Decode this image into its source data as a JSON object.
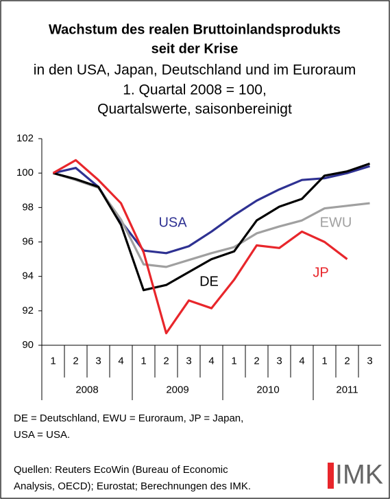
{
  "chart_data": {
    "type": "line",
    "title": [
      "Wachstum des realen Bruttoinlandsprodukts",
      "seit der Krise"
    ],
    "subtitle": [
      "in den USA, Japan, Deutschland und im Euroraum",
      "1. Quartal 2008 = 100,",
      "Quartalswerte, saisonbereinigt"
    ],
    "categories": [
      "1",
      "2",
      "3",
      "4",
      "1",
      "2",
      "3",
      "4",
      "1",
      "2",
      "3",
      "4",
      "1",
      "2",
      "3"
    ],
    "years": [
      "2008",
      "2009",
      "2010",
      "2011"
    ],
    "ylim": [
      90,
      102
    ],
    "yticks": [
      90,
      92,
      94,
      96,
      98,
      100,
      102
    ],
    "grid": false,
    "series": [
      {
        "name": "USA",
        "color": "#2e3192",
        "values": [
          100,
          100.3,
          99.2,
          97.2,
          95.5,
          95.35,
          95.75,
          96.6,
          97.55,
          98.4,
          99.05,
          99.6,
          99.7,
          100.0,
          100.4
        ]
      },
      {
        "name": "EWU",
        "color": "#a0a0a0",
        "values": [
          100,
          99.6,
          99.15,
          97.3,
          94.7,
          94.55,
          94.95,
          95.35,
          95.7,
          96.5,
          96.9,
          97.25,
          97.95,
          98.1,
          98.25
        ]
      },
      {
        "name": "DE",
        "color": "#000000",
        "values": [
          100,
          99.65,
          99.2,
          97.0,
          93.2,
          93.5,
          94.25,
          95.0,
          95.45,
          97.25,
          98.05,
          98.5,
          99.85,
          100.1,
          100.55
        ]
      },
      {
        "name": "JP",
        "color": "#e8262b",
        "values": [
          100,
          100.75,
          99.6,
          98.25,
          95.4,
          90.7,
          92.6,
          92.15,
          93.8,
          95.8,
          95.65,
          96.6,
          96.0,
          95.0,
          null
        ]
      }
    ],
    "notes": [
      "DE = Deutschland, EWU = Euroraum, JP = Japan,",
      "USA = USA."
    ],
    "source": [
      "Quellen: Reuters EcoWin (Bureau of Economic",
      "Analysis, OECD); Eurostat; Berechnungen des IMK."
    ]
  },
  "logo": "IMK"
}
